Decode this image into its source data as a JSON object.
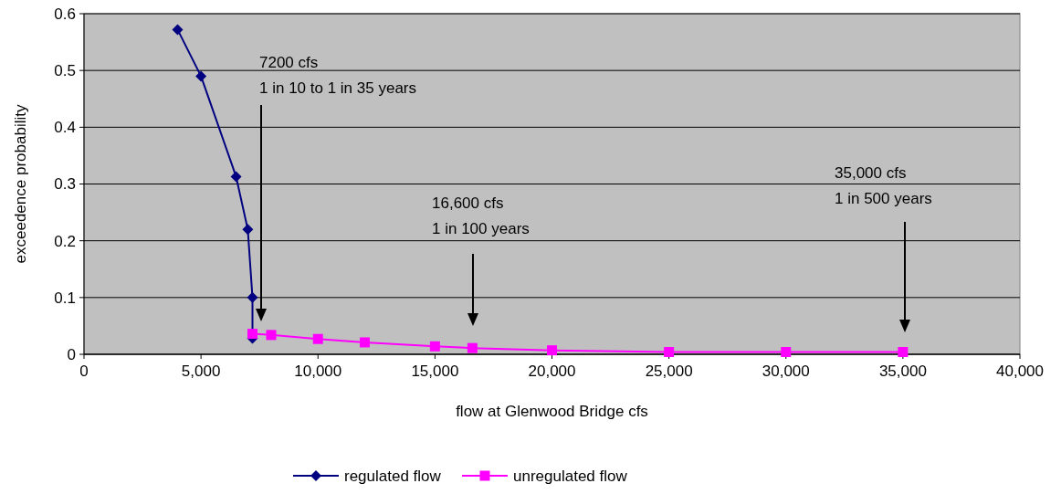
{
  "chart_data": {
    "type": "line",
    "xlabel": "flow at Glenwood Bridge cfs",
    "ylabel": "exceedence probability",
    "xlim": [
      0,
      40000
    ],
    "xticks": [
      {
        "value": 0,
        "label": "0"
      },
      {
        "value": 5000,
        "label": "5,000"
      },
      {
        "value": 10000,
        "label": "10,000"
      },
      {
        "value": 15000,
        "label": "15,000"
      },
      {
        "value": 20000,
        "label": "20,000"
      },
      {
        "value": 25000,
        "label": "25,000"
      },
      {
        "value": 30000,
        "label": "30,000"
      },
      {
        "value": 35000,
        "label": "35,000"
      },
      {
        "value": 40000,
        "label": "40,000"
      }
    ],
    "ylim": [
      0,
      0.6
    ],
    "yticks": [
      0,
      0.1,
      0.2,
      0.3,
      0.4,
      0.5,
      0.6
    ],
    "grid": "y",
    "legend": "bottom",
    "series": [
      {
        "name": "regulated flow",
        "color": "#000080",
        "marker": "diamond",
        "x": [
          4000,
          5000,
          6500,
          7000,
          7200,
          7200
        ],
        "values": [
          0.572,
          0.49,
          0.313,
          0.22,
          0.1,
          0.028
        ]
      },
      {
        "name": "unregulated flow",
        "color": "#ff00ff",
        "marker": "square",
        "x": [
          7200,
          8000,
          10000,
          12000,
          15000,
          16600,
          20000,
          25000,
          30000,
          35000
        ],
        "values": [
          0.036,
          0.034,
          0.027,
          0.021,
          0.014,
          0.011,
          0.007,
          0.004,
          0.004,
          0.004
        ]
      }
    ],
    "annotations": [
      "7200 cfs\n1 in 10 to 1 in 35 years",
      "16,600 cfs\n1 in 100 years",
      "35,000 cfs\n1 in 500 years"
    ]
  }
}
